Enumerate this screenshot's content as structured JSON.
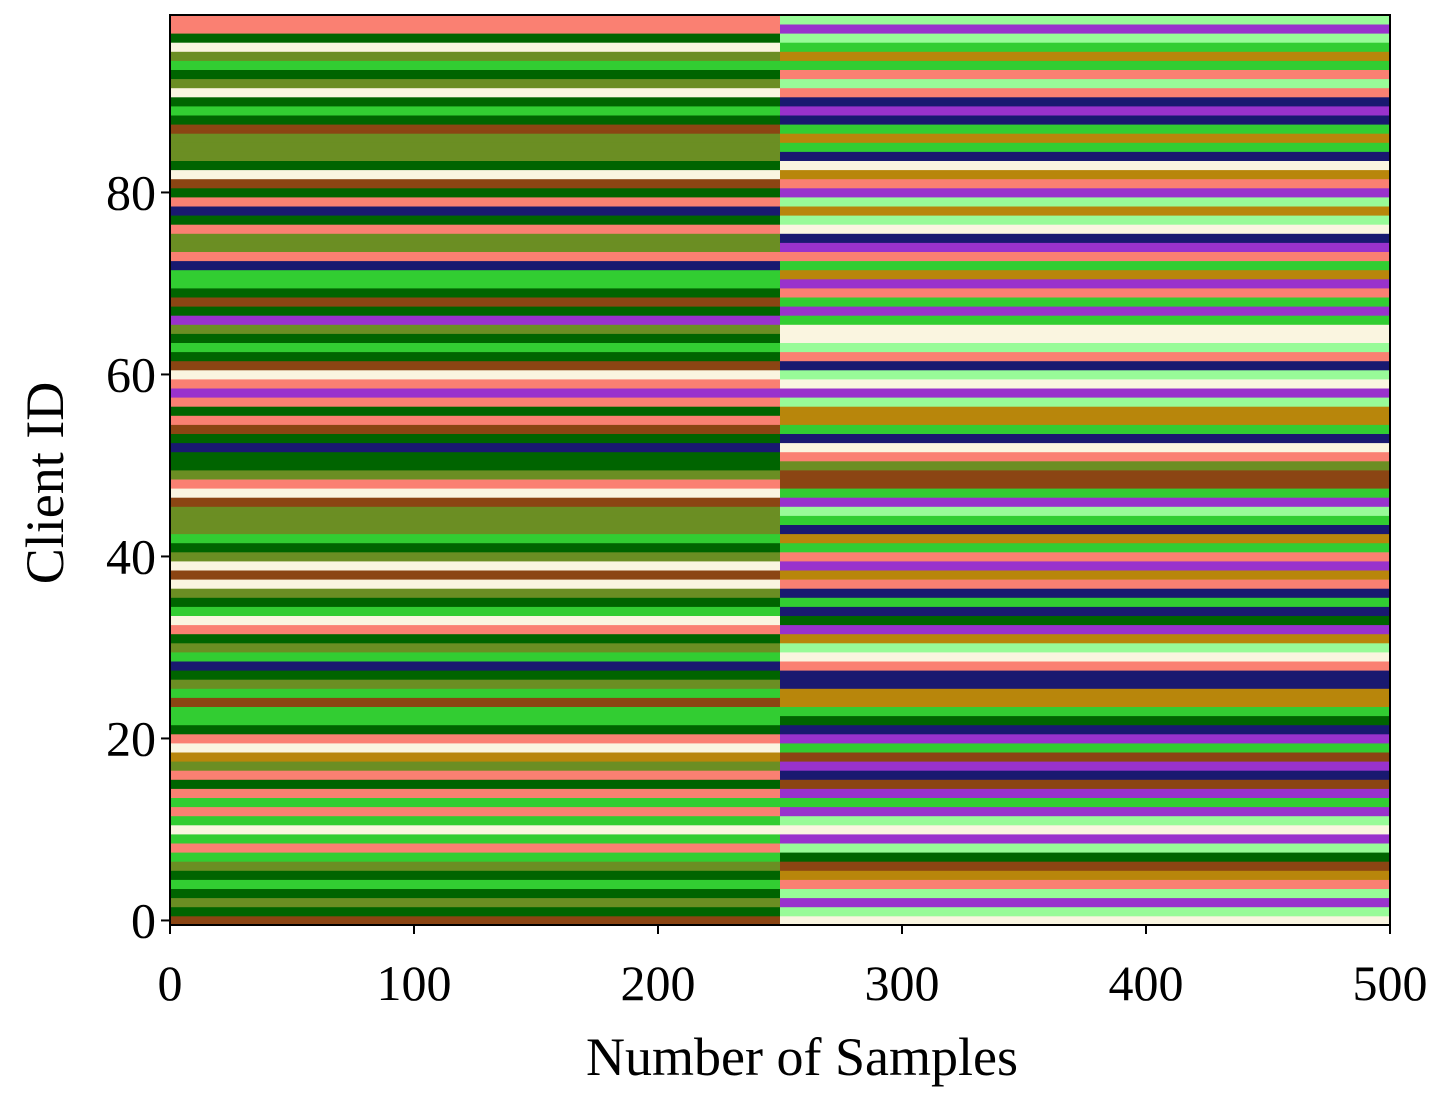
{
  "chart_data": {
    "type": "bar",
    "orientation": "horizontal-stacked",
    "title": "",
    "xlabel": "Number of Samples",
    "ylabel": "Client ID",
    "xlim": [
      0,
      500
    ],
    "ylim": [
      -0.5,
      99.5
    ],
    "xticks": [
      0,
      100,
      200,
      300,
      400,
      500
    ],
    "yticks": [
      0,
      20,
      40,
      60,
      80
    ],
    "grid": false,
    "legend": "none",
    "num_clients": 100,
    "segments_per_client": [
      250,
      250
    ],
    "palette": [
      "#8B4513",
      "#006400",
      "#6B8E23",
      "#32CD32",
      "#FA8072",
      "#FAF5E0",
      "#B8860B",
      "#191970",
      "#9932CC",
      "#98FB98"
    ],
    "first_half_colors": [
      0,
      1,
      2,
      1,
      3,
      1,
      2,
      3,
      4,
      3,
      5,
      3,
      4,
      3,
      4,
      1,
      4,
      2,
      6,
      5,
      4,
      1,
      3,
      3,
      0,
      3,
      2,
      1,
      7,
      3,
      2,
      1,
      4,
      5,
      3,
      1,
      2,
      5,
      0,
      5,
      2,
      1,
      3,
      2,
      2,
      2,
      0,
      5,
      4,
      2,
      1,
      1,
      7,
      1,
      0,
      4,
      1,
      4,
      8,
      4,
      5,
      0,
      1,
      3,
      1,
      2,
      8,
      1,
      0,
      1,
      3,
      3,
      7,
      4,
      2,
      2,
      4,
      1,
      7,
      4,
      1,
      0,
      5,
      1,
      2,
      2,
      2,
      0,
      1,
      3,
      1,
      5,
      2,
      1,
      3,
      2,
      5,
      1,
      4,
      4
    ],
    "second_half_colors": [
      5,
      9,
      8,
      9,
      4,
      6,
      0,
      1,
      9,
      8,
      5,
      9,
      8,
      3,
      8,
      0,
      7,
      8,
      0,
      3,
      8,
      7,
      1,
      3,
      6,
      6,
      7,
      7,
      4,
      5,
      9,
      6,
      8,
      1,
      7,
      3,
      7,
      4,
      6,
      8,
      4,
      3,
      6,
      7,
      3,
      9,
      8,
      3,
      0,
      0,
      2,
      4,
      5,
      7,
      3,
      6,
      6,
      9,
      8,
      5,
      9,
      7,
      4,
      9,
      5,
      5,
      3,
      8,
      3,
      4,
      8,
      6,
      3,
      4,
      8,
      7,
      5,
      9,
      6,
      9,
      8,
      4,
      6,
      5,
      7,
      3,
      6,
      3,
      7,
      8,
      7,
      4,
      9,
      4,
      3,
      6,
      3,
      9,
      8,
      9
    ]
  }
}
